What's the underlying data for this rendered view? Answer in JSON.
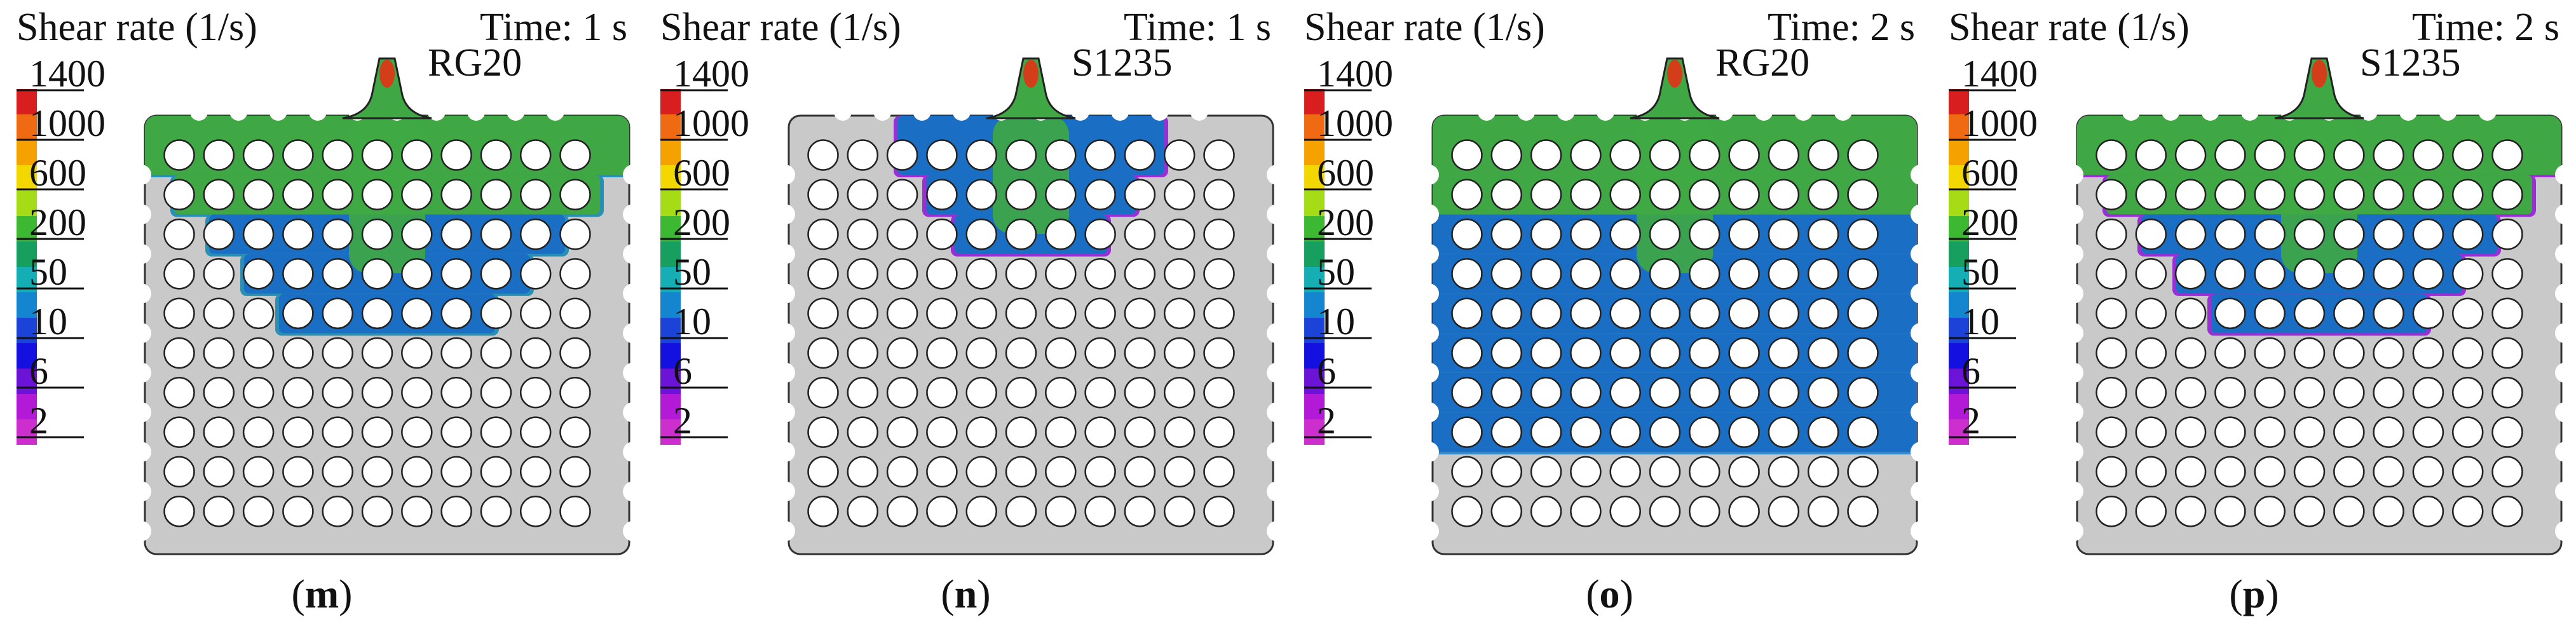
{
  "figure": {
    "panels": [
      {
        "id": "m",
        "title": "Shear rate (1/s)",
        "time": "Time: 1 s",
        "material": "RG20",
        "caption_letter": "m",
        "rows_filled": 5,
        "fill_shape": "wide_funnel",
        "edge_color": "#2a8fb5"
      },
      {
        "id": "n",
        "title": "Shear rate (1/s)",
        "time": "Time: 1 s",
        "material": "S1235",
        "caption_letter": "n",
        "rows_filled": 3,
        "fill_shape": "narrow_funnel",
        "edge_color": "#9b2fd6"
      },
      {
        "id": "o",
        "title": "Shear rate (1/s)",
        "time": "Time: 2 s",
        "material": "RG20",
        "caption_letter": "o",
        "rows_filled": 8,
        "fill_shape": "full_width",
        "edge_color": "#3a8ac6"
      },
      {
        "id": "p",
        "title": "Shear rate (1/s)",
        "time": "Time: 2 s",
        "material": "S1235",
        "caption_letter": "p",
        "rows_filled": 5,
        "fill_shape": "wide_funnel",
        "edge_color": "#9b2fd6"
      }
    ],
    "legend": {
      "ticks": [
        "1400",
        "1000",
        "600",
        "200",
        "50",
        "10",
        "6",
        "2"
      ],
      "colors": [
        "#d81e1e",
        "#ef6a12",
        "#f5a200",
        "#f2d800",
        "#a6dc16",
        "#3cb832",
        "#169f5f",
        "#16aeb5",
        "#1486d0",
        "#1c43d8",
        "#1411e0",
        "#6b14d8",
        "#b21ad8",
        "#cc2fce"
      ]
    },
    "colors": {
      "plate": "#c9c9c9",
      "plate_stroke": "#333333",
      "hole": "#ffffff",
      "high_shear_nozzle": "#d43d1a",
      "green": "#3fa844",
      "teal": "#1f9a8d",
      "blue": "#1a6fc4"
    }
  }
}
